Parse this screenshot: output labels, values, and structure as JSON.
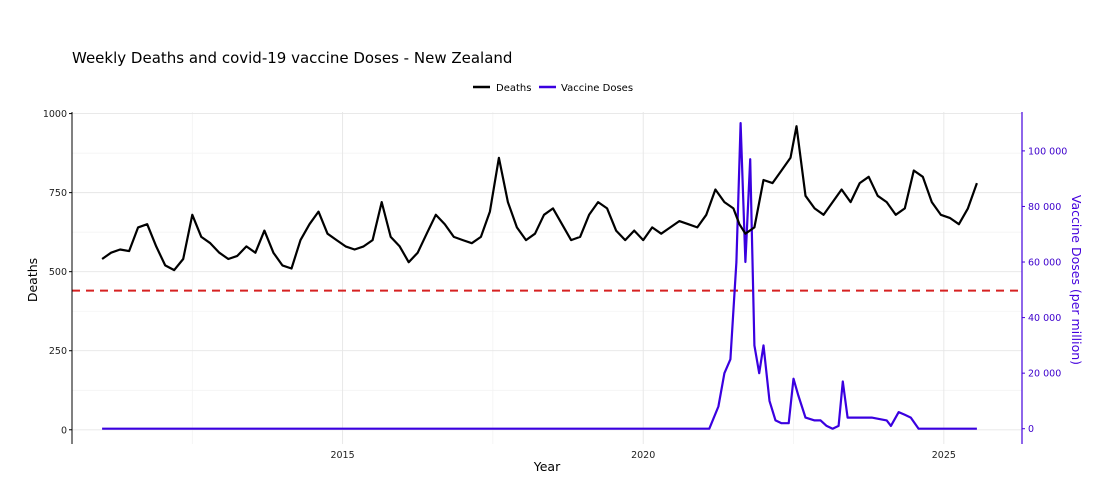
{
  "chart_data": {
    "type": "line",
    "title": "Weekly Deaths and covid-19 vaccine Doses - New Zealand",
    "xlabel": "Year",
    "ylabel": "Deaths",
    "y2label": "Vaccine Doses (per million)",
    "xlim": [
      2010.5,
      2026.3
    ],
    "ylim": [
      -45,
      1005
    ],
    "y2lim": [
      -5500,
      114000
    ],
    "x_ticks": [
      2015,
      2020,
      2025
    ],
    "x_tick_labels": [
      "2015",
      "2020",
      "2025"
    ],
    "y_ticks": [
      0,
      250,
      500,
      750,
      1000
    ],
    "y_tick_labels": [
      "0",
      "250",
      "500",
      "750",
      "1000"
    ],
    "y2_ticks": [
      0,
      20000,
      40000,
      60000,
      80000,
      100000
    ],
    "y2_tick_labels": [
      "0",
      "20 000",
      "40 000",
      "60 000",
      "80 000",
      "100 000"
    ],
    "grid": true,
    "legend_position": "top-center",
    "reference_line": {
      "y": 440,
      "color": "#d62222",
      "style": "dashed"
    },
    "series": [
      {
        "name": "Deaths",
        "axis": "left",
        "color": "#000000",
        "x": [
          2011.0,
          2011.15,
          2011.3,
          2011.45,
          2011.6,
          2011.75,
          2011.9,
          2012.05,
          2012.2,
          2012.35,
          2012.5,
          2012.65,
          2012.8,
          2012.95,
          2013.1,
          2013.25,
          2013.4,
          2013.55,
          2013.7,
          2013.85,
          2014.0,
          2014.15,
          2014.3,
          2014.45,
          2014.6,
          2014.75,
          2014.9,
          2015.05,
          2015.2,
          2015.35,
          2015.5,
          2015.65,
          2015.8,
          2015.95,
          2016.1,
          2016.25,
          2016.4,
          2016.55,
          2016.7,
          2016.85,
          2017.0,
          2017.15,
          2017.3,
          2017.45,
          2017.6,
          2017.75,
          2017.9,
          2018.05,
          2018.2,
          2018.35,
          2018.5,
          2018.65,
          2018.8,
          2018.95,
          2019.1,
          2019.25,
          2019.4,
          2019.55,
          2019.7,
          2019.85,
          2020.0,
          2020.15,
          2020.3,
          2020.45,
          2020.6,
          2020.75,
          2020.9,
          2021.05,
          2021.2,
          2021.35,
          2021.5,
          2021.6,
          2021.7,
          2021.85,
          2022.0,
          2022.15,
          2022.3,
          2022.45,
          2022.55,
          2022.7,
          2022.85,
          2023.0,
          2023.15,
          2023.3,
          2023.45,
          2023.6,
          2023.75,
          2023.9,
          2024.05,
          2024.2,
          2024.35,
          2024.5,
          2024.65,
          2024.8,
          2024.95,
          2025.1,
          2025.25,
          2025.4,
          2025.55
        ],
        "y": [
          540,
          560,
          570,
          565,
          640,
          650,
          580,
          520,
          505,
          540,
          680,
          610,
          590,
          560,
          540,
          550,
          580,
          560,
          630,
          560,
          520,
          510,
          600,
          650,
          690,
          620,
          600,
          580,
          570,
          580,
          600,
          720,
          610,
          580,
          530,
          560,
          620,
          680,
          650,
          610,
          600,
          590,
          610,
          690,
          860,
          720,
          640,
          600,
          620,
          680,
          700,
          650,
          600,
          610,
          680,
          720,
          700,
          630,
          600,
          630,
          600,
          640,
          620,
          640,
          660,
          650,
          640,
          680,
          760,
          720,
          700,
          650,
          620,
          640,
          790,
          780,
          820,
          860,
          960,
          740,
          700,
          680,
          720,
          760,
          720,
          780,
          800,
          740,
          720,
          680,
          700,
          820,
          800,
          720,
          680,
          670,
          650,
          700,
          780
        ]
      },
      {
        "name": "Vaccine Doses",
        "axis": "right",
        "color": "#3a00e0",
        "x": [
          2011.0,
          2020.5,
          2021.1,
          2021.25,
          2021.35,
          2021.45,
          2021.55,
          2021.62,
          2021.7,
          2021.78,
          2021.85,
          2021.93,
          2022.0,
          2022.1,
          2022.2,
          2022.3,
          2022.42,
          2022.5,
          2022.58,
          2022.7,
          2022.85,
          2022.95,
          2023.05,
          2023.15,
          2023.25,
          2023.32,
          2023.4,
          2023.8,
          2024.05,
          2024.12,
          2024.25,
          2024.35,
          2024.45,
          2024.58,
          2025.0,
          2025.55
        ],
        "y": [
          0,
          0,
          0,
          8000,
          20000,
          25000,
          60000,
          110000,
          60000,
          97000,
          30000,
          20000,
          30000,
          10000,
          3000,
          2000,
          2000,
          18000,
          12000,
          4000,
          3000,
          3000,
          1000,
          0,
          1000,
          17000,
          4000,
          4000,
          3000,
          1000,
          6000,
          5000,
          4000,
          0,
          0,
          0
        ]
      }
    ]
  },
  "legend": {
    "items": [
      {
        "label": "Deaths",
        "color": "#000000"
      },
      {
        "label": "Vaccine Doses",
        "color": "#3a00e0"
      }
    ]
  }
}
